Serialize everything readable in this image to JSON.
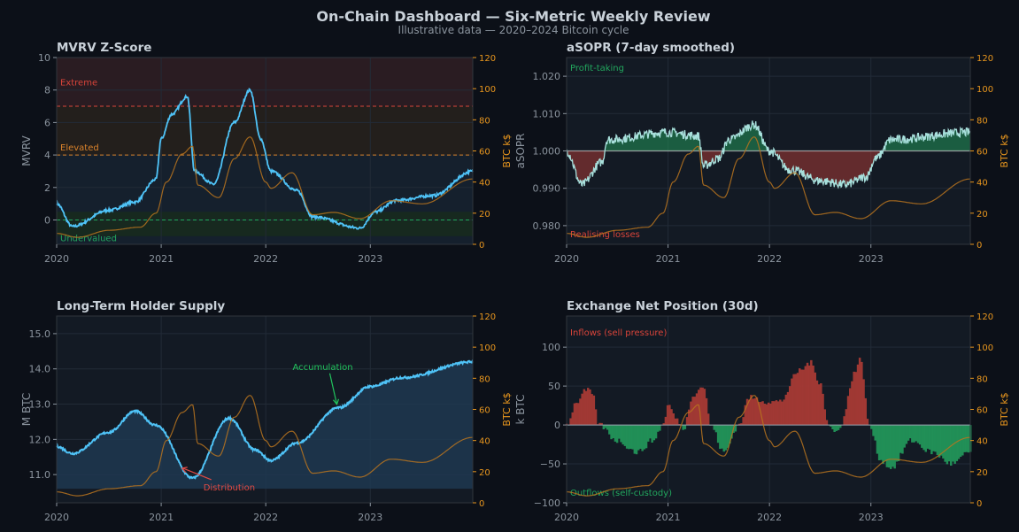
{
  "title": "On-Chain Dashboard — Six-Metric Weekly Review",
  "subtitle": "Illustrative data — 2020–2024 Bitcoin cycle",
  "colors": {
    "background": "#0c1018",
    "plot_bg": "#131a24",
    "primary_line": "#4fc3f7",
    "asopr_line": "#a8e0dc",
    "price_line": "#b8741f",
    "secondary_axis": "#e8961e",
    "positive_green": "#22955a",
    "negative_red": "#a63a35"
  },
  "chart_data": [
    {
      "type": "line",
      "title": "MVRV Z-Score",
      "ylabel": "MVRV",
      "ylim": [
        -1.5,
        10
      ],
      "yticks": [
        "10",
        "8",
        "6",
        "4",
        "2",
        "0"
      ],
      "ytick_values": [
        10,
        8,
        6,
        4,
        2,
        0
      ],
      "xticks": [
        "2020",
        "2021",
        "2022",
        "2023"
      ],
      "xlim": [
        2020,
        2023.98
      ],
      "grid": true,
      "zones": [
        {
          "label": "Extreme",
          "from": 7,
          "to": 10,
          "color": "#d9443a"
        },
        {
          "label": "Elevated",
          "from": 4,
          "to": 7,
          "color": "#d9822b"
        },
        {
          "label": "Undervalued",
          "from": -1,
          "to": 0.5,
          "color": "#22a75e"
        }
      ],
      "thresholds": [
        7,
        4,
        0
      ],
      "series": {
        "x": [
          2020,
          2020.15,
          2020.5,
          2020.75,
          2020.95,
          2021.0,
          2021.1,
          2021.25,
          2021.32,
          2021.5,
          2021.7,
          2021.85,
          2021.95,
          2022.05,
          2022.3,
          2022.45,
          2022.9,
          2023.05,
          2023.25,
          2023.6,
          2023.98
        ],
        "y": [
          1.0,
          -0.4,
          0.6,
          1.1,
          2.5,
          5.0,
          6.5,
          7.6,
          3.0,
          2.2,
          6.0,
          8.0,
          5.0,
          3.0,
          1.8,
          0.2,
          -0.5,
          0.5,
          1.2,
          1.5,
          3.0
        ]
      },
      "secondary": {
        "label": "BTC k$",
        "ylim": [
          0,
          120
        ],
        "ticks": [
          "120",
          "100",
          "80",
          "60",
          "40",
          "20",
          "0"
        ],
        "tick_values": [
          120,
          100,
          80,
          60,
          40,
          20,
          0
        ]
      }
    },
    {
      "type": "area",
      "title": "aSOPR (7-day smoothed)",
      "ylabel": "aSOPR",
      "ylim": [
        0.975,
        1.025
      ],
      "yticks": [
        "1.020",
        "1.010",
        "1.000",
        "0.990",
        "0.980"
      ],
      "ytick_values": [
        1.02,
        1.01,
        1.0,
        0.99,
        0.98
      ],
      "xticks": [
        "2020",
        "2021",
        "2022",
        "2023"
      ],
      "xlim": [
        2020,
        2023.98
      ],
      "grid": true,
      "baseline": 1.0,
      "annotations": {
        "top": "Profit-taking",
        "bottom": "Realising losses"
      },
      "series": {
        "x": [
          2020,
          2020.15,
          2020.35,
          2020.4,
          2021.0,
          2021.3,
          2021.35,
          2021.5,
          2021.6,
          2021.85,
          2022.0,
          2022.2,
          2022.5,
          2022.75,
          2022.95,
          2023.05,
          2023.2,
          2023.98
        ],
        "y": [
          1.0,
          0.991,
          0.997,
          1.003,
          1.005,
          1.004,
          0.996,
          0.998,
          1.003,
          1.007,
          1.0,
          0.995,
          0.992,
          0.991,
          0.993,
          0.998,
          1.003,
          1.005
        ]
      },
      "secondary": {
        "label": "BTC k$",
        "ylim": [
          0,
          120
        ],
        "ticks": [
          "120",
          "100",
          "80",
          "60",
          "40",
          "20",
          "0"
        ],
        "tick_values": [
          120,
          100,
          80,
          60,
          40,
          20,
          0
        ]
      }
    },
    {
      "type": "area",
      "title": "Long-Term Holder Supply",
      "ylabel": "M BTC",
      "ylim": [
        10.2,
        15.5
      ],
      "yticks": [
        "15.0",
        "14.0",
        "13.0",
        "12.0",
        "11.0"
      ],
      "ytick_values": [
        15,
        14,
        13,
        12,
        11
      ],
      "xticks": [
        "2020",
        "2021",
        "2022",
        "2023"
      ],
      "xlim": [
        2020,
        2023.98
      ],
      "grid": true,
      "annotations": {
        "accumulation": "Accumulation",
        "distribution": "Distribution"
      },
      "series": {
        "x": [
          2020,
          2020.15,
          2020.5,
          2020.75,
          2020.95,
          2021.3,
          2021.65,
          2021.9,
          2022.05,
          2022.3,
          2022.7,
          2023.0,
          2023.3,
          2023.98
        ],
        "y": [
          11.8,
          11.6,
          12.2,
          12.8,
          12.4,
          10.9,
          12.6,
          11.7,
          11.4,
          11.9,
          12.9,
          13.5,
          13.75,
          14.2
        ]
      },
      "secondary": {
        "label": "BTC k$",
        "ylim": [
          0,
          120
        ],
        "ticks": [
          "120",
          "100",
          "80",
          "60",
          "40",
          "20",
          "0"
        ],
        "tick_values": [
          120,
          100,
          80,
          60,
          40,
          20,
          0
        ]
      }
    },
    {
      "type": "bar",
      "title": "Exchange Net Position (30d)",
      "ylabel": "k BTC",
      "ylim": [
        -100,
        140
      ],
      "yticks": [
        "100",
        "50",
        "0",
        "−50",
        "−100"
      ],
      "ytick_values": [
        100,
        50,
        0,
        -50,
        -100
      ],
      "xticks": [
        "2020",
        "2021",
        "2022",
        "2023"
      ],
      "xlim": [
        2020,
        2023.98
      ],
      "grid": true,
      "annotations": {
        "top": "Inflows  (sell pressure)",
        "bottom": "Outflows  (self-custody)"
      },
      "series": {
        "x": [
          2020,
          2020.1,
          2020.2,
          2020.25,
          2020.32,
          2020.5,
          2020.7,
          2020.85,
          2020.95,
          2021.0,
          2021.1,
          2021.15,
          2021.25,
          2021.35,
          2021.42,
          2021.55,
          2021.7,
          2021.8,
          2022.0,
          2022.1,
          2022.3,
          2022.4,
          2022.5,
          2022.58,
          2022.65,
          2022.7,
          2022.85,
          2022.9,
          2022.98,
          2023.1,
          2023.2,
          2023.4,
          2023.6,
          2023.8,
          2023.98
        ],
        "y": [
          0,
          30,
          45,
          40,
          0,
          -20,
          -35,
          -20,
          0,
          25,
          5,
          -5,
          40,
          50,
          0,
          -35,
          0,
          35,
          30,
          30,
          70,
          80,
          55,
          0,
          -10,
          0,
          70,
          85,
          0,
          -45,
          -55,
          -20,
          -35,
          -50,
          -35
        ]
      },
      "secondary": {
        "label": "BTC k$",
        "ylim": [
          0,
          120
        ],
        "ticks": [
          "120",
          "100",
          "80",
          "60",
          "40",
          "20",
          "0"
        ],
        "tick_values": [
          120,
          100,
          80,
          60,
          40,
          20,
          0
        ]
      }
    }
  ],
  "price_series": {
    "label": "BTC k$",
    "x": [
      2020,
      2020.2,
      2020.5,
      2020.8,
      2020.95,
      2021.05,
      2021.2,
      2021.3,
      2021.35,
      2021.55,
      2021.7,
      2021.85,
      2022.0,
      2022.05,
      2022.25,
      2022.45,
      2022.65,
      2022.9,
      2023.2,
      2023.5,
      2023.98
    ],
    "y": [
      7,
      4.5,
      9,
      11,
      20,
      40,
      58,
      63,
      38,
      30,
      55,
      69,
      40,
      36,
      46,
      19,
      20.5,
      16.5,
      28,
      26,
      42
    ]
  }
}
